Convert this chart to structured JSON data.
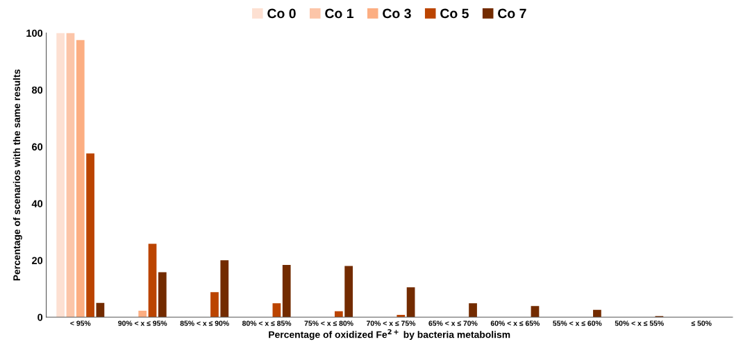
{
  "chart_data": {
    "type": "bar",
    "xlabel": "Percentage of oxidized Fe$^{2+}$ by bacteria metabolism",
    "ylabel": "Percentage of scenarios with the same results",
    "categories": [
      "< 95%",
      "90% < x ≤ 95%",
      "85% < x ≤ 90%",
      "80% < x ≤ 85%",
      "75% < x ≤ 80%",
      "70% < x ≤ 75%",
      "65% < x ≤ 70%",
      "60% < x ≤ 65%",
      "55% < x ≤ 60%",
      "50% < x ≤ 55%",
      "≤ 50%"
    ],
    "series": [
      {
        "name": "Co 0",
        "color": "#fde0d2",
        "values": [
          100,
          0,
          0,
          0,
          0,
          0,
          0,
          0,
          0,
          0,
          0
        ]
      },
      {
        "name": "Co 1",
        "color": "#fcc5a8",
        "values": [
          100,
          0,
          0,
          0,
          0,
          0,
          0,
          0,
          0,
          0,
          0
        ]
      },
      {
        "name": "Co 3",
        "color": "#fcae82",
        "values": [
          97.5,
          2.3,
          0,
          0,
          0,
          0,
          0,
          0,
          0,
          0,
          0
        ]
      },
      {
        "name": "Co 5",
        "color": "#bb4400",
        "values": [
          57.6,
          25.8,
          8.8,
          4.9,
          2.1,
          0.8,
          0,
          0,
          0,
          0,
          0
        ]
      },
      {
        "name": "Co 7",
        "color": "#732b00",
        "values": [
          5,
          15.8,
          20,
          18.4,
          18,
          10.5,
          4.9,
          3.9,
          2.6,
          0.4,
          0
        ]
      }
    ],
    "ylim": [
      0,
      100
    ],
    "yticks": [
      0,
      20,
      40,
      60,
      80,
      100
    ],
    "grid": false,
    "legend": "top"
  }
}
